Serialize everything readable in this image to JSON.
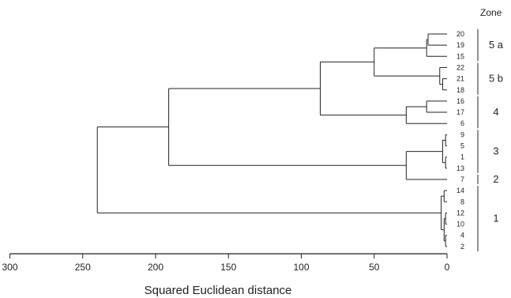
{
  "figure": {
    "zone_heading": "Zone",
    "x_axis_label": "Squared Euclidean distance",
    "x_axis_ticks": [
      "300",
      "250",
      "200",
      "150",
      "100",
      "50",
      "0"
    ],
    "x_axis_range": [
      300,
      0
    ],
    "line_color": "#222222"
  },
  "leaves": [
    "20",
    "19",
    "15",
    "22",
    "21",
    "18",
    "16",
    "17",
    "6",
    "9",
    "5",
    "1",
    "13",
    "7",
    "14",
    "8",
    "12",
    "10",
    "4",
    "2"
  ],
  "merges": [
    {
      "a": "19",
      "b": "20",
      "h": 13
    },
    {
      "a": "m0",
      "b": "15",
      "h": 14
    },
    {
      "a": "21",
      "b": "18",
      "h": 3
    },
    {
      "a": "22",
      "b": "m2",
      "h": 5
    },
    {
      "a": "m1",
      "b": "m3",
      "h": 50
    },
    {
      "a": "16",
      "b": "17",
      "h": 14
    },
    {
      "a": "m5",
      "b": "6",
      "h": 28
    },
    {
      "a": "m4",
      "b": "m6",
      "h": 87
    },
    {
      "a": "9",
      "b": "5",
      "h": 1
    },
    {
      "a": "1",
      "b": "13",
      "h": 1
    },
    {
      "a": "m8",
      "b": "m9",
      "h": 3
    },
    {
      "a": "m10",
      "b": "7",
      "h": 28
    },
    {
      "a": "m7",
      "b": "m11",
      "h": 191
    },
    {
      "a": "14",
      "b": "8",
      "h": 2
    },
    {
      "a": "12",
      "b": "10",
      "h": 1
    },
    {
      "a": "4",
      "b": "2",
      "h": 1
    },
    {
      "a": "m14",
      "b": "m15",
      "h": 2
    },
    {
      "a": "m13",
      "b": "m16",
      "h": 4
    },
    {
      "a": "m12",
      "b": "m17",
      "h": 240
    }
  ],
  "zones": [
    {
      "label": "5 a",
      "first": "20",
      "last": "15"
    },
    {
      "label": "5 b",
      "first": "22",
      "last": "18"
    },
    {
      "label": "4",
      "first": "16",
      "last": "6"
    },
    {
      "label": "3",
      "first": "9",
      "last": "13"
    },
    {
      "label": "2",
      "first": "7",
      "last": "7"
    },
    {
      "label": "1",
      "first": "14",
      "last": "2"
    }
  ]
}
